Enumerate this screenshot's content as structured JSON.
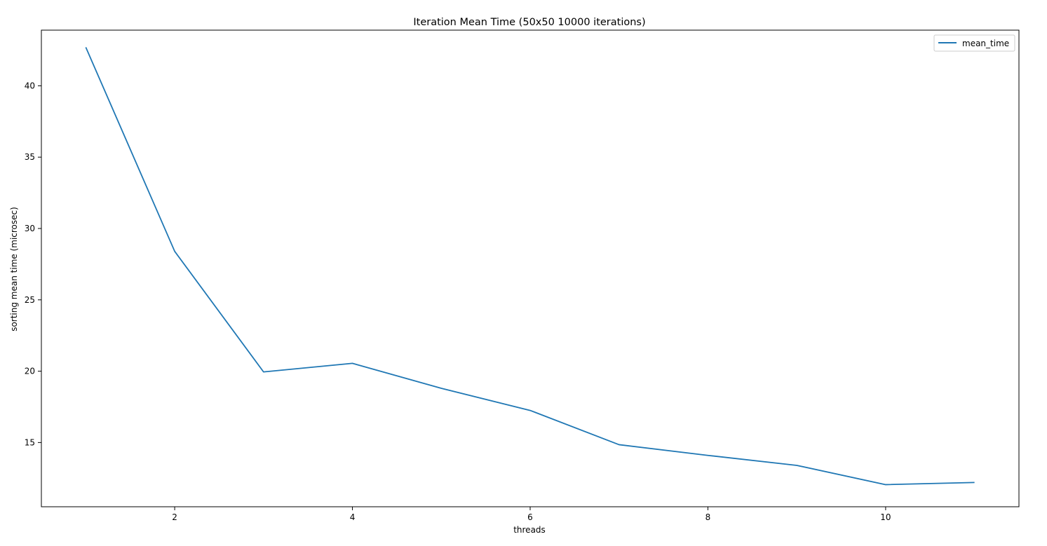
{
  "chart_data": {
    "type": "line",
    "title": "Iteration Mean Time (50x50 10000 iterations)",
    "xlabel": "threads",
    "ylabel": "sorting mean time (microsec)",
    "xlim": [
      0.5,
      11.5
    ],
    "ylim": [
      10.5,
      43.9
    ],
    "xticks": [
      2,
      4,
      6,
      8,
      10
    ],
    "yticks": [
      15,
      20,
      25,
      30,
      35,
      40
    ],
    "grid": false,
    "legend_position": "top-right",
    "series": [
      {
        "name": "mean_time",
        "color": "#1f77b4",
        "x": [
          1,
          2,
          3,
          4,
          5,
          6,
          7,
          8,
          9,
          10,
          11
        ],
        "y": [
          42.7,
          28.4,
          19.95,
          20.55,
          18.8,
          17.25,
          14.85,
          14.1,
          13.4,
          12.05,
          12.2
        ]
      }
    ]
  }
}
